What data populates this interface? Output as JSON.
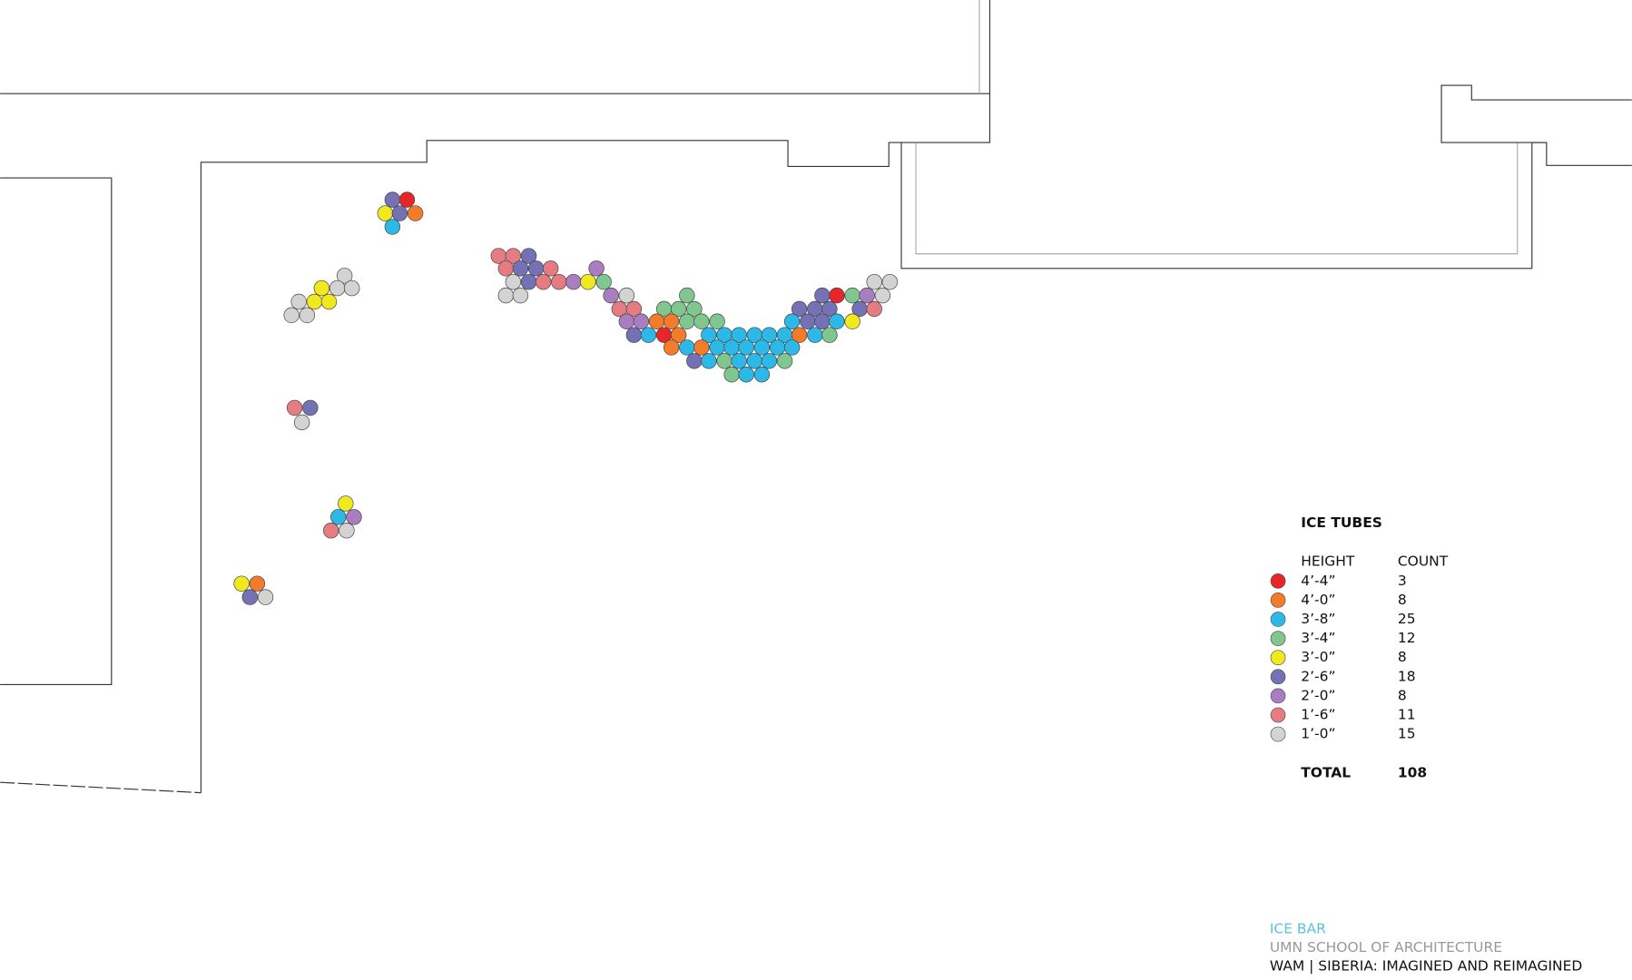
{
  "legend": {
    "title": "ICE TUBES",
    "headers": [
      "HEIGHT",
      "COUNT"
    ],
    "rows": [
      {
        "height": "4’-4”",
        "count": 3,
        "color": "#e8262a"
      },
      {
        "height": "4’-0”",
        "count": 8,
        "color": "#f37b2a"
      },
      {
        "height": "3’-8”",
        "count": 25,
        "color": "#2cb9e8"
      },
      {
        "height": "3’-4”",
        "count": 12,
        "color": "#7fc68f"
      },
      {
        "height": "3’-0”",
        "count": 8,
        "color": "#f0e91e"
      },
      {
        "height": "2’-6”",
        "count": 18,
        "color": "#7472b5"
      },
      {
        "height": "2’-0”",
        "count": 8,
        "color": "#a97ec0"
      },
      {
        "height": "1’-6”",
        "count": 11,
        "color": "#e57c82"
      },
      {
        "height": "1’-0”",
        "count": 15,
        "color": "#d3d3d3"
      }
    ],
    "total_label": "TOTAL",
    "total": 108
  },
  "footer": {
    "project": "ICE BAR",
    "school": "UMN SCHOOL OF ARCHITECTURE",
    "exhibit": "WAM |  SIBERIA: IMAGINED AND REIMAGINED"
  }
}
